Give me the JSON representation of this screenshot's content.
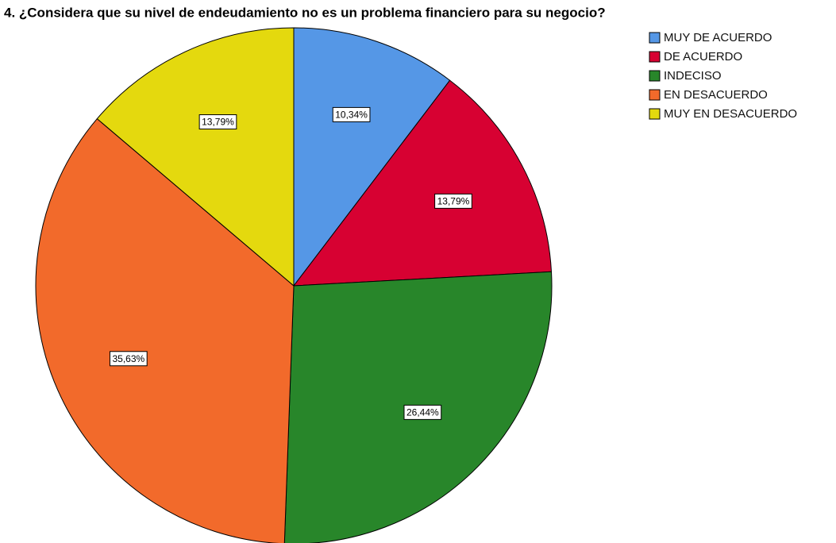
{
  "chart_data": {
    "type": "pie",
    "title": "4. ¿Considera que su nivel de endeudamiento no es un problema financiero para su negocio?",
    "categories": [
      "MUY DE ACUERDO",
      "DE ACUERDO",
      "INDECISO",
      "EN DESACUERDO",
      "MUY EN DESACUERDO"
    ],
    "values": [
      10.34,
      13.79,
      26.44,
      35.63,
      13.79
    ],
    "value_labels": [
      "10,34%",
      "13,79%",
      "26,44%",
      "35,63%",
      "13,79%"
    ],
    "colors": [
      "#5597e6",
      "#d70132",
      "#28862a",
      "#f26a2b",
      "#e4d90e"
    ],
    "legend": "top-right"
  }
}
